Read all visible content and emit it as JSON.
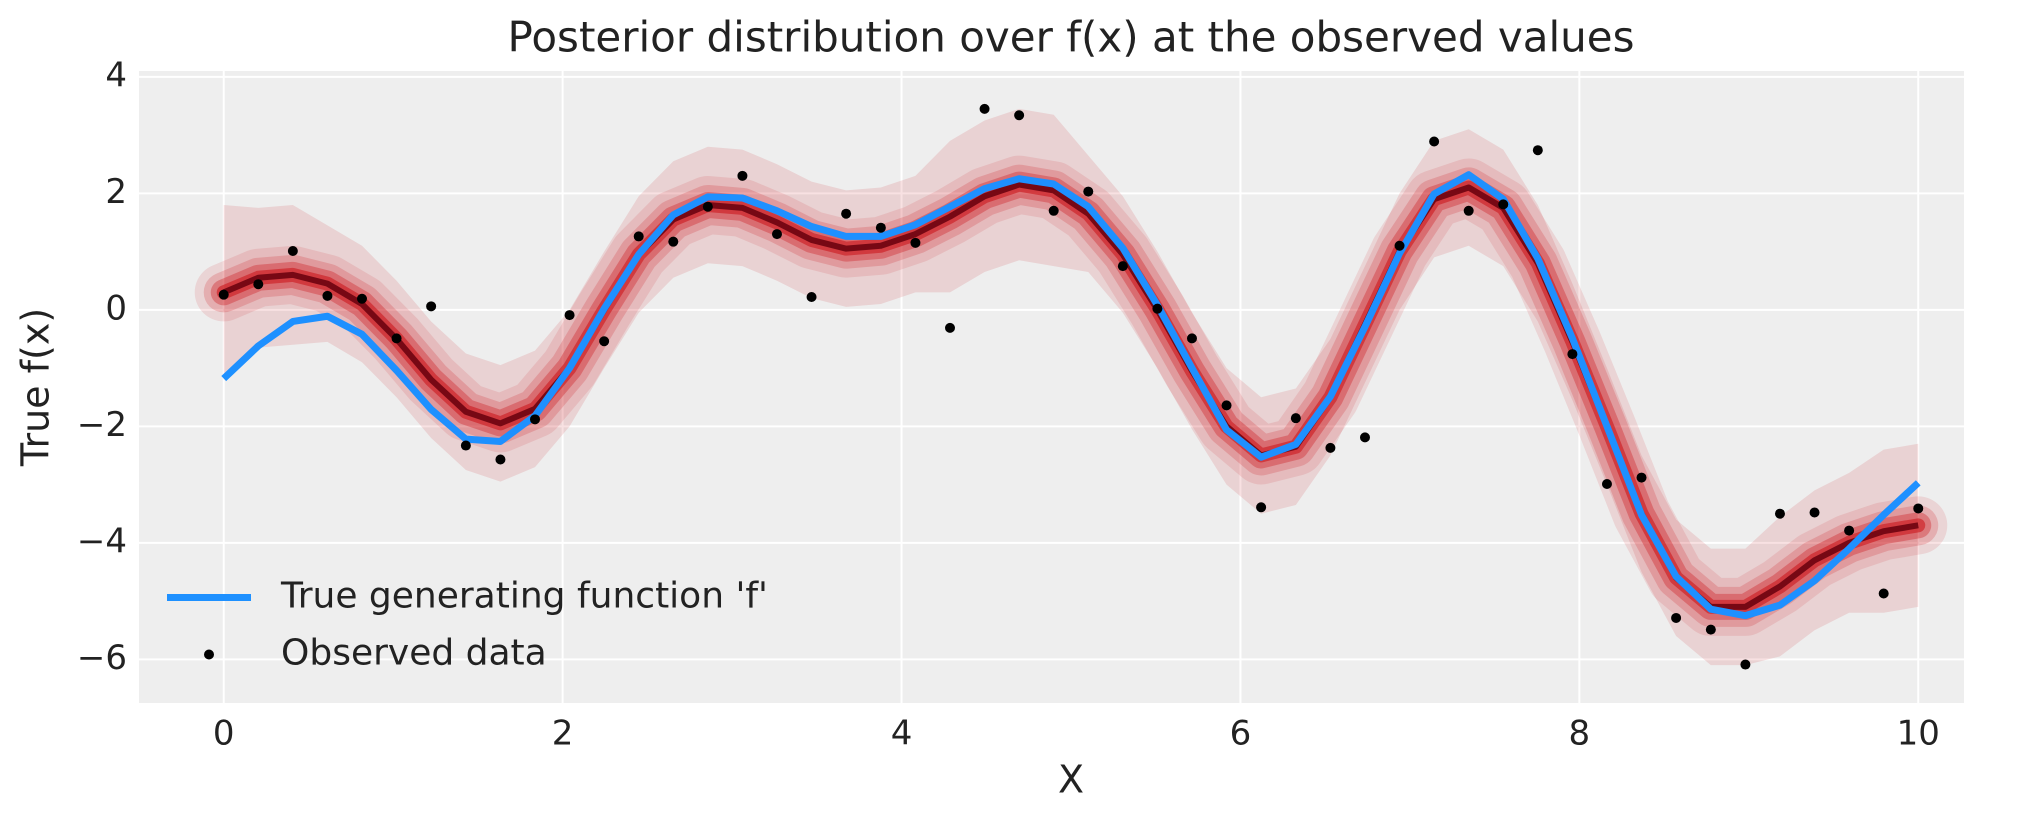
{
  "chart_data": {
    "type": "line",
    "title": "Posterior distribution over f(x) at the observed values",
    "xlabel": "X",
    "ylabel": "True f(x)",
    "xlim": [
      -0.5,
      10.27
    ],
    "ylim": [
      -6.75,
      4.1
    ],
    "xticks": [
      0,
      2,
      4,
      6,
      8,
      10
    ],
    "yticks": [
      {
        "value": -6,
        "label": "−6"
      },
      {
        "value": -4,
        "label": "−4"
      },
      {
        "value": -2,
        "label": "−2"
      },
      0,
      2,
      4
    ],
    "grid": true,
    "legend": "lower left",
    "x": [
      0,
      0.204,
      0.408,
      0.612,
      0.816,
      1.02,
      1.224,
      1.429,
      1.633,
      1.837,
      2.041,
      2.245,
      2.449,
      2.653,
      2.857,
      3.061,
      3.265,
      3.469,
      3.673,
      3.878,
      4.082,
      4.286,
      4.49,
      4.694,
      4.898,
      5.102,
      5.306,
      5.51,
      5.714,
      5.918,
      6.122,
      6.327,
      6.531,
      6.735,
      6.939,
      7.143,
      7.347,
      7.551,
      7.755,
      7.959,
      8.163,
      8.367,
      8.571,
      8.776,
      8.98,
      9.184,
      9.388,
      9.592,
      9.796,
      10
    ],
    "posterior": {
      "color": "#cb181d",
      "mean": [
        0.3,
        0.55,
        0.6,
        0.45,
        0.1,
        -0.5,
        -1.2,
        -1.75,
        -1.95,
        -1.7,
        -1.0,
        0.0,
        0.95,
        1.55,
        1.8,
        1.75,
        1.5,
        1.2,
        1.05,
        1.1,
        1.3,
        1.6,
        1.95,
        2.15,
        2.05,
        1.65,
        0.95,
        0.0,
        -1.05,
        -2.0,
        -2.5,
        -2.35,
        -1.5,
        -0.25,
        1.0,
        1.9,
        2.1,
        1.75,
        0.8,
        -0.55,
        -2.0,
        -3.5,
        -4.6,
        -5.1,
        -5.1,
        -4.75,
        -4.3,
        -4.0,
        -3.8,
        -3.7
      ],
      "upper": [
        1.8,
        1.75,
        1.8,
        1.45,
        1.1,
        0.5,
        -0.2,
        -0.75,
        -0.95,
        -0.7,
        0.0,
        1.0,
        1.95,
        2.55,
        2.8,
        2.75,
        2.5,
        2.2,
        2.05,
        2.1,
        2.3,
        2.9,
        3.25,
        3.45,
        3.35,
        2.65,
        1.95,
        1.0,
        -0.05,
        -1.0,
        -1.5,
        -1.35,
        -0.5,
        0.75,
        2.0,
        2.9,
        3.1,
        2.75,
        1.8,
        0.45,
        -1.0,
        -2.5,
        -3.6,
        -4.1,
        -4.1,
        -3.55,
        -3.1,
        -2.8,
        -2.4,
        -2.3
      ],
      "lower": [
        -1.2,
        -0.65,
        -0.6,
        -0.55,
        -0.9,
        -1.5,
        -2.2,
        -2.75,
        -2.95,
        -2.7,
        -2.0,
        -1.0,
        -0.05,
        0.55,
        0.8,
        0.75,
        0.5,
        0.2,
        0.05,
        0.1,
        0.3,
        0.3,
        0.65,
        0.85,
        0.75,
        0.65,
        -0.05,
        -1.0,
        -2.05,
        -3.0,
        -3.5,
        -3.35,
        -2.5,
        -1.25,
        0.0,
        0.9,
        1.1,
        0.75,
        -0.2,
        -1.55,
        -3.0,
        -4.5,
        -5.6,
        -6.1,
        -6.1,
        -5.95,
        -5.5,
        -5.2,
        -5.2,
        -5.1
      ]
    },
    "series": [
      {
        "name": "True generating function 'f'",
        "color": "#1e90ff",
        "style": "line",
        "values": [
          -1.18,
          -0.62,
          -0.2,
          -0.11,
          -0.42,
          -1.04,
          -1.71,
          -2.22,
          -2.26,
          -1.82,
          -1.0,
          0.02,
          0.95,
          1.63,
          1.94,
          1.92,
          1.7,
          1.43,
          1.26,
          1.26,
          1.46,
          1.77,
          2.08,
          2.25,
          2.16,
          1.77,
          1.06,
          0.08,
          -1.0,
          -2.06,
          -2.53,
          -2.31,
          -1.49,
          -0.29,
          0.97,
          1.99,
          2.32,
          1.9,
          0.88,
          -0.49,
          -2.0,
          -3.52,
          -4.58,
          -5.14,
          -5.25,
          -5.07,
          -4.65,
          -4.1,
          -3.52,
          -2.97
        ]
      },
      {
        "name": "Observed data",
        "color": "#000000",
        "style": "markers",
        "values": [
          0.26,
          0.44,
          1.01,
          0.24,
          0.19,
          -0.49,
          0.06,
          -2.33,
          -2.57,
          -1.88,
          -0.09,
          -0.54,
          1.26,
          1.17,
          1.77,
          2.3,
          1.3,
          0.22,
          1.65,
          1.41,
          1.15,
          -0.31,
          3.45,
          3.34,
          1.7,
          2.03,
          0.75,
          0.02,
          -0.49,
          -1.64,
          -3.39,
          -1.86,
          -2.37,
          -2.19,
          1.1,
          2.89,
          1.7,
          1.81,
          2.74,
          -0.76,
          -2.99,
          -2.88,
          -5.29,
          -5.49,
          -6.09,
          -3.5,
          -3.48,
          -3.79,
          -4.87,
          -3.41
        ]
      }
    ]
  }
}
